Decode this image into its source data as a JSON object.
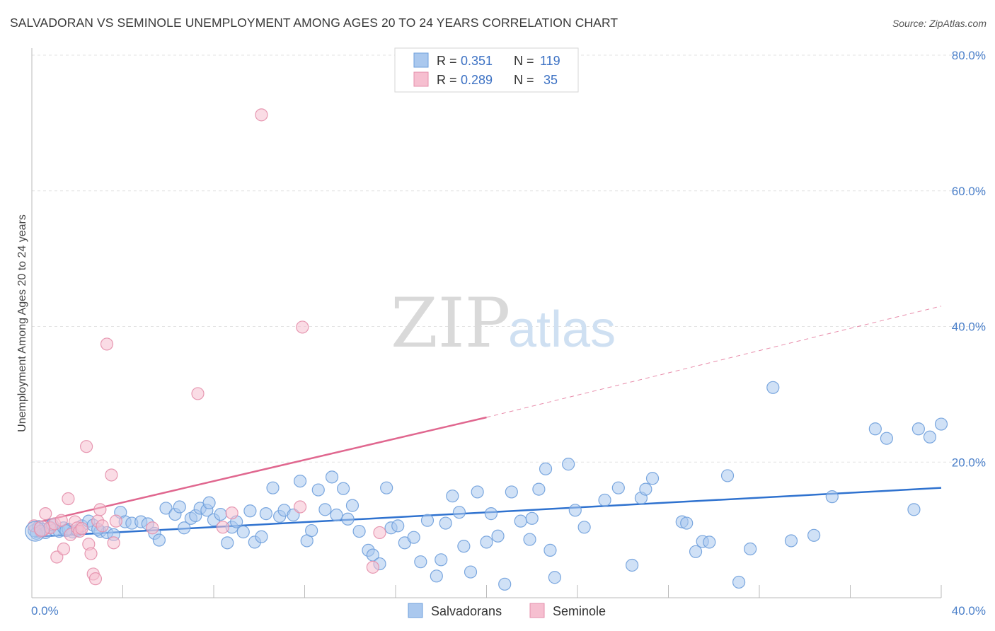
{
  "title": "SALVADORAN VS SEMINOLE UNEMPLOYMENT AMONG AGES 20 TO 24 YEARS CORRELATION CHART",
  "source": "Source: ZipAtlas.com",
  "watermark": {
    "zip": "ZIP",
    "atlas": "atlas"
  },
  "colors": {
    "salvadoran_fill": "#aac8ee",
    "salvadoran_stroke": "#6e9fdc",
    "salvadoran_line": "#2f72cf",
    "seminole_fill": "#f6bfd0",
    "seminole_stroke": "#e48fab",
    "seminole_line": "#e0678f",
    "tick_text": "#4a7fc9"
  },
  "legend": {
    "rows": [
      {
        "r_label": "R = ",
        "r_value": "0.351",
        "n_label": "N = ",
        "n_value": "119"
      },
      {
        "r_label": "R = ",
        "r_value": "0.289",
        "n_label": "N = ",
        "n_value": "35"
      }
    ]
  },
  "bottom_legend": [
    "Salvadorans",
    "Seminole"
  ],
  "chart_data": {
    "type": "scatter",
    "title": "SALVADORAN VS SEMINOLE UNEMPLOYMENT AMONG AGES 20 TO 24 YEARS CORRELATION CHART",
    "xlabel": "",
    "ylabel": "Unemployment Among Ages 20 to 24 years",
    "xlim": [
      0,
      40
    ],
    "ylim": [
      0,
      80
    ],
    "x_tick_labels": [
      "0.0%",
      "40.0%"
    ],
    "y_tick_labels": [
      "20.0%",
      "40.0%",
      "60.0%",
      "80.0%"
    ],
    "y_tick_values": [
      20,
      40,
      60,
      80
    ],
    "grid": true,
    "legend_position": "top-center",
    "series": [
      {
        "name": "Salvadorans",
        "r": 0.351,
        "n": 119,
        "trend": {
          "x": [
            0.1,
            40
          ],
          "y": [
            9.0,
            16.2
          ]
        },
        "points": [
          [
            0.1,
            9.9
          ],
          [
            0.3,
            10.5
          ],
          [
            0.5,
            10.1
          ],
          [
            0.6,
            9.6
          ],
          [
            0.8,
            10.4
          ],
          [
            1.0,
            10.0
          ],
          [
            1.2,
            9.8
          ],
          [
            1.4,
            10.3
          ],
          [
            1.6,
            10.1
          ],
          [
            1.8,
            9.7
          ],
          [
            2.0,
            9.9
          ],
          [
            2.2,
            10.6
          ],
          [
            2.5,
            11.3
          ],
          [
            2.7,
            10.7
          ],
          [
            3.0,
            9.8
          ],
          [
            3.3,
            9.6
          ],
          [
            3.6,
            9.3
          ],
          [
            3.9,
            12.6
          ],
          [
            4.1,
            11.2
          ],
          [
            4.4,
            11.0
          ],
          [
            4.8,
            11.2
          ],
          [
            5.1,
            10.9
          ],
          [
            5.4,
            9.5
          ],
          [
            5.6,
            8.5
          ],
          [
            5.9,
            13.2
          ],
          [
            6.3,
            12.3
          ],
          [
            6.5,
            13.4
          ],
          [
            6.7,
            10.3
          ],
          [
            7.0,
            11.7
          ],
          [
            7.2,
            12.1
          ],
          [
            7.4,
            13.2
          ],
          [
            7.7,
            12.9
          ],
          [
            7.8,
            14.0
          ],
          [
            8.0,
            11.5
          ],
          [
            8.3,
            12.3
          ],
          [
            8.6,
            8.1
          ],
          [
            8.8,
            10.4
          ],
          [
            9.0,
            11.2
          ],
          [
            9.3,
            9.7
          ],
          [
            9.6,
            12.8
          ],
          [
            9.8,
            8.2
          ],
          [
            10.1,
            9.0
          ],
          [
            10.3,
            12.4
          ],
          [
            10.6,
            16.2
          ],
          [
            10.9,
            12.0
          ],
          [
            11.1,
            12.9
          ],
          [
            11.5,
            12.2
          ],
          [
            11.8,
            17.2
          ],
          [
            12.1,
            8.4
          ],
          [
            12.3,
            9.9
          ],
          [
            12.6,
            15.9
          ],
          [
            12.9,
            13.0
          ],
          [
            13.2,
            17.8
          ],
          [
            13.4,
            12.2
          ],
          [
            13.7,
            16.1
          ],
          [
            13.9,
            11.6
          ],
          [
            14.1,
            13.6
          ],
          [
            14.4,
            9.8
          ],
          [
            14.8,
            7.0
          ],
          [
            15.0,
            6.3
          ],
          [
            15.3,
            5.0
          ],
          [
            15.6,
            16.2
          ],
          [
            15.8,
            10.3
          ],
          [
            16.1,
            10.6
          ],
          [
            16.4,
            8.1
          ],
          [
            16.8,
            8.9
          ],
          [
            17.1,
            5.3
          ],
          [
            17.4,
            11.4
          ],
          [
            17.8,
            3.2
          ],
          [
            18.0,
            5.6
          ],
          [
            18.2,
            11.0
          ],
          [
            18.5,
            15.0
          ],
          [
            18.8,
            12.6
          ],
          [
            19.0,
            7.6
          ],
          [
            19.3,
            3.8
          ],
          [
            19.6,
            15.6
          ],
          [
            20.0,
            8.2
          ],
          [
            20.2,
            12.4
          ],
          [
            20.5,
            9.1
          ],
          [
            20.8,
            2.0
          ],
          [
            21.1,
            15.6
          ],
          [
            21.5,
            11.3
          ],
          [
            21.9,
            8.6
          ],
          [
            22.0,
            11.7
          ],
          [
            22.3,
            16.0
          ],
          [
            22.6,
            19.0
          ],
          [
            22.8,
            7.0
          ],
          [
            23.0,
            3.0
          ],
          [
            23.6,
            19.7
          ],
          [
            23.9,
            12.9
          ],
          [
            24.3,
            10.4
          ],
          [
            25.2,
            14.4
          ],
          [
            25.8,
            16.2
          ],
          [
            26.4,
            4.8
          ],
          [
            26.8,
            14.7
          ],
          [
            27.0,
            16.0
          ],
          [
            27.3,
            17.6
          ],
          [
            28.6,
            11.2
          ],
          [
            28.8,
            11.0
          ],
          [
            29.2,
            6.8
          ],
          [
            29.5,
            8.3
          ],
          [
            29.8,
            8.2
          ],
          [
            30.6,
            18.0
          ],
          [
            31.1,
            2.3
          ],
          [
            31.6,
            7.2
          ],
          [
            32.6,
            31.0
          ],
          [
            33.4,
            8.4
          ],
          [
            34.4,
            9.2
          ],
          [
            35.2,
            14.9
          ],
          [
            37.1,
            24.9
          ],
          [
            37.6,
            23.5
          ],
          [
            38.8,
            13.0
          ],
          [
            40.0,
            25.6
          ],
          [
            39.5,
            23.7
          ],
          [
            39.0,
            24.9
          ],
          [
            0.2,
            9.5
          ],
          [
            0.9,
            10.8
          ],
          [
            1.5,
            9.9
          ],
          [
            2.9,
            10.1
          ]
        ]
      },
      {
        "name": "Seminole",
        "r": 0.289,
        "n": 35,
        "trend": {
          "x": [
            0.1,
            20
          ],
          "y": [
            11.0,
            26.6
          ]
        },
        "trend_dashed": {
          "x": [
            20,
            40
          ],
          "y": [
            26.6,
            43.0
          ]
        },
        "points": [
          [
            0.1,
            10.6
          ],
          [
            0.4,
            9.8
          ],
          [
            0.6,
            12.4
          ],
          [
            0.8,
            10.3
          ],
          [
            1.0,
            10.9
          ],
          [
            1.1,
            6.0
          ],
          [
            1.3,
            11.4
          ],
          [
            1.4,
            7.2
          ],
          [
            1.6,
            14.6
          ],
          [
            1.7,
            9.3
          ],
          [
            1.9,
            11.2
          ],
          [
            2.0,
            10.3
          ],
          [
            2.1,
            9.8
          ],
          [
            2.2,
            10.2
          ],
          [
            2.4,
            22.3
          ],
          [
            2.5,
            7.9
          ],
          [
            2.6,
            6.5
          ],
          [
            2.7,
            3.5
          ],
          [
            2.8,
            2.8
          ],
          [
            2.9,
            11.3
          ],
          [
            3.0,
            13.0
          ],
          [
            3.1,
            10.6
          ],
          [
            3.3,
            37.4
          ],
          [
            3.5,
            18.1
          ],
          [
            3.6,
            8.1
          ],
          [
            3.7,
            11.3
          ],
          [
            5.3,
            10.3
          ],
          [
            7.3,
            30.1
          ],
          [
            8.4,
            10.4
          ],
          [
            8.8,
            12.5
          ],
          [
            10.1,
            71.2
          ],
          [
            11.8,
            13.4
          ],
          [
            11.9,
            39.9
          ],
          [
            15.0,
            4.5
          ],
          [
            15.3,
            9.6
          ]
        ]
      }
    ]
  }
}
